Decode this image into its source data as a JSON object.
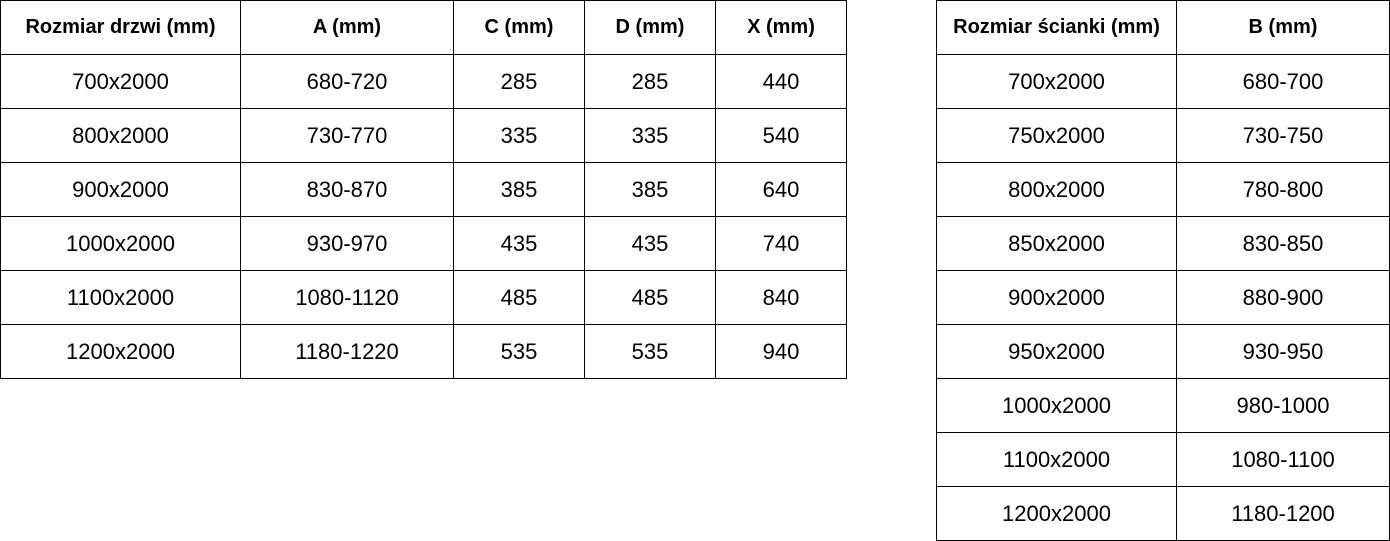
{
  "door_table": {
    "headers": [
      "Rozmiar drzwi (mm)",
      "A (mm)",
      "C (mm)",
      "D (mm)",
      "X (mm)"
    ],
    "rows": [
      [
        "700x2000",
        "680-720",
        "285",
        "285",
        "440"
      ],
      [
        "800x2000",
        "730-770",
        "335",
        "335",
        "540"
      ],
      [
        "900x2000",
        "830-870",
        "385",
        "385",
        "640"
      ],
      [
        "1000x2000",
        "930-970",
        "435",
        "435",
        "740"
      ],
      [
        "1100x2000",
        "1080-1120",
        "485",
        "485",
        "840"
      ],
      [
        "1200x2000",
        "1180-1220",
        "535",
        "535",
        "940"
      ]
    ]
  },
  "wall_table": {
    "headers": [
      "Rozmiar ścianki (mm)",
      "B (mm)"
    ],
    "rows": [
      [
        "700x2000",
        "680-700"
      ],
      [
        "750x2000",
        "730-750"
      ],
      [
        "800x2000",
        "780-800"
      ],
      [
        "850x2000",
        "830-850"
      ],
      [
        "900x2000",
        "880-900"
      ],
      [
        "950x2000",
        "930-950"
      ],
      [
        "1000x2000",
        "980-1000"
      ],
      [
        "1100x2000",
        "1080-1100"
      ],
      [
        "1200x2000",
        "1180-1200"
      ]
    ]
  }
}
